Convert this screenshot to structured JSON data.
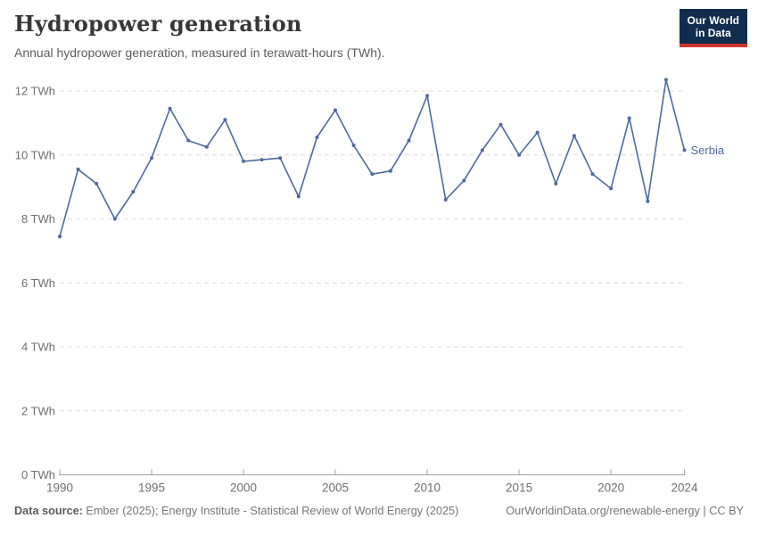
{
  "header": {
    "title": "Hydropower generation",
    "subtitle": "Annual hydropower generation, measured in terawatt-hours (TWh)."
  },
  "logo": {
    "line1": "Our World",
    "line2": "in Data"
  },
  "chart_data": {
    "type": "line",
    "title": "Hydropower generation",
    "xlabel": "",
    "ylabel": "",
    "x": [
      1990,
      1991,
      1992,
      1993,
      1994,
      1995,
      1996,
      1997,
      1998,
      1999,
      2000,
      2001,
      2002,
      2003,
      2004,
      2005,
      2006,
      2007,
      2008,
      2009,
      2010,
      2011,
      2012,
      2013,
      2014,
      2015,
      2016,
      2017,
      2018,
      2019,
      2020,
      2021,
      2022,
      2023,
      2024
    ],
    "series": [
      {
        "name": "Serbia",
        "values": [
          7.45,
          9.55,
          9.1,
          8.0,
          8.85,
          9.9,
          11.45,
          10.45,
          10.25,
          11.1,
          9.8,
          9.85,
          9.9,
          8.7,
          10.55,
          11.4,
          10.3,
          9.4,
          9.5,
          10.45,
          11.85,
          8.6,
          9.2,
          10.15,
          10.95,
          10.0,
          10.7,
          9.1,
          10.6,
          9.4,
          8.95,
          11.15,
          8.55,
          12.35,
          10.15
        ]
      }
    ],
    "xlim": [
      1990,
      2024
    ],
    "ylim": [
      0,
      12.5
    ],
    "x_ticks": [
      1990,
      1995,
      2000,
      2005,
      2010,
      2015,
      2020,
      2024
    ],
    "y_ticks": [
      0,
      2,
      4,
      6,
      8,
      10,
      12
    ],
    "y_tick_suffix": " TWh",
    "grid": true,
    "legend_position": "line-end-label"
  },
  "footer": {
    "source_label": "Data source:",
    "source_text": " Ember (2025); Energy Institute - Statistical Review of World Energy (2025)",
    "right_text": "OurWorldinData.org/renewable-energy | CC BY"
  },
  "colors": {
    "line": "#4c6a9c",
    "grid": "#dcdcdc",
    "axis": "#a3a3a3",
    "tick_label": "#6e6e6e",
    "entity_label": "#4c6a9c",
    "title": "#373737",
    "subtitle": "#5c5c5c",
    "footer": "#757575",
    "logo_bg": "#102d4e",
    "logo_red": "#d1342c"
  }
}
